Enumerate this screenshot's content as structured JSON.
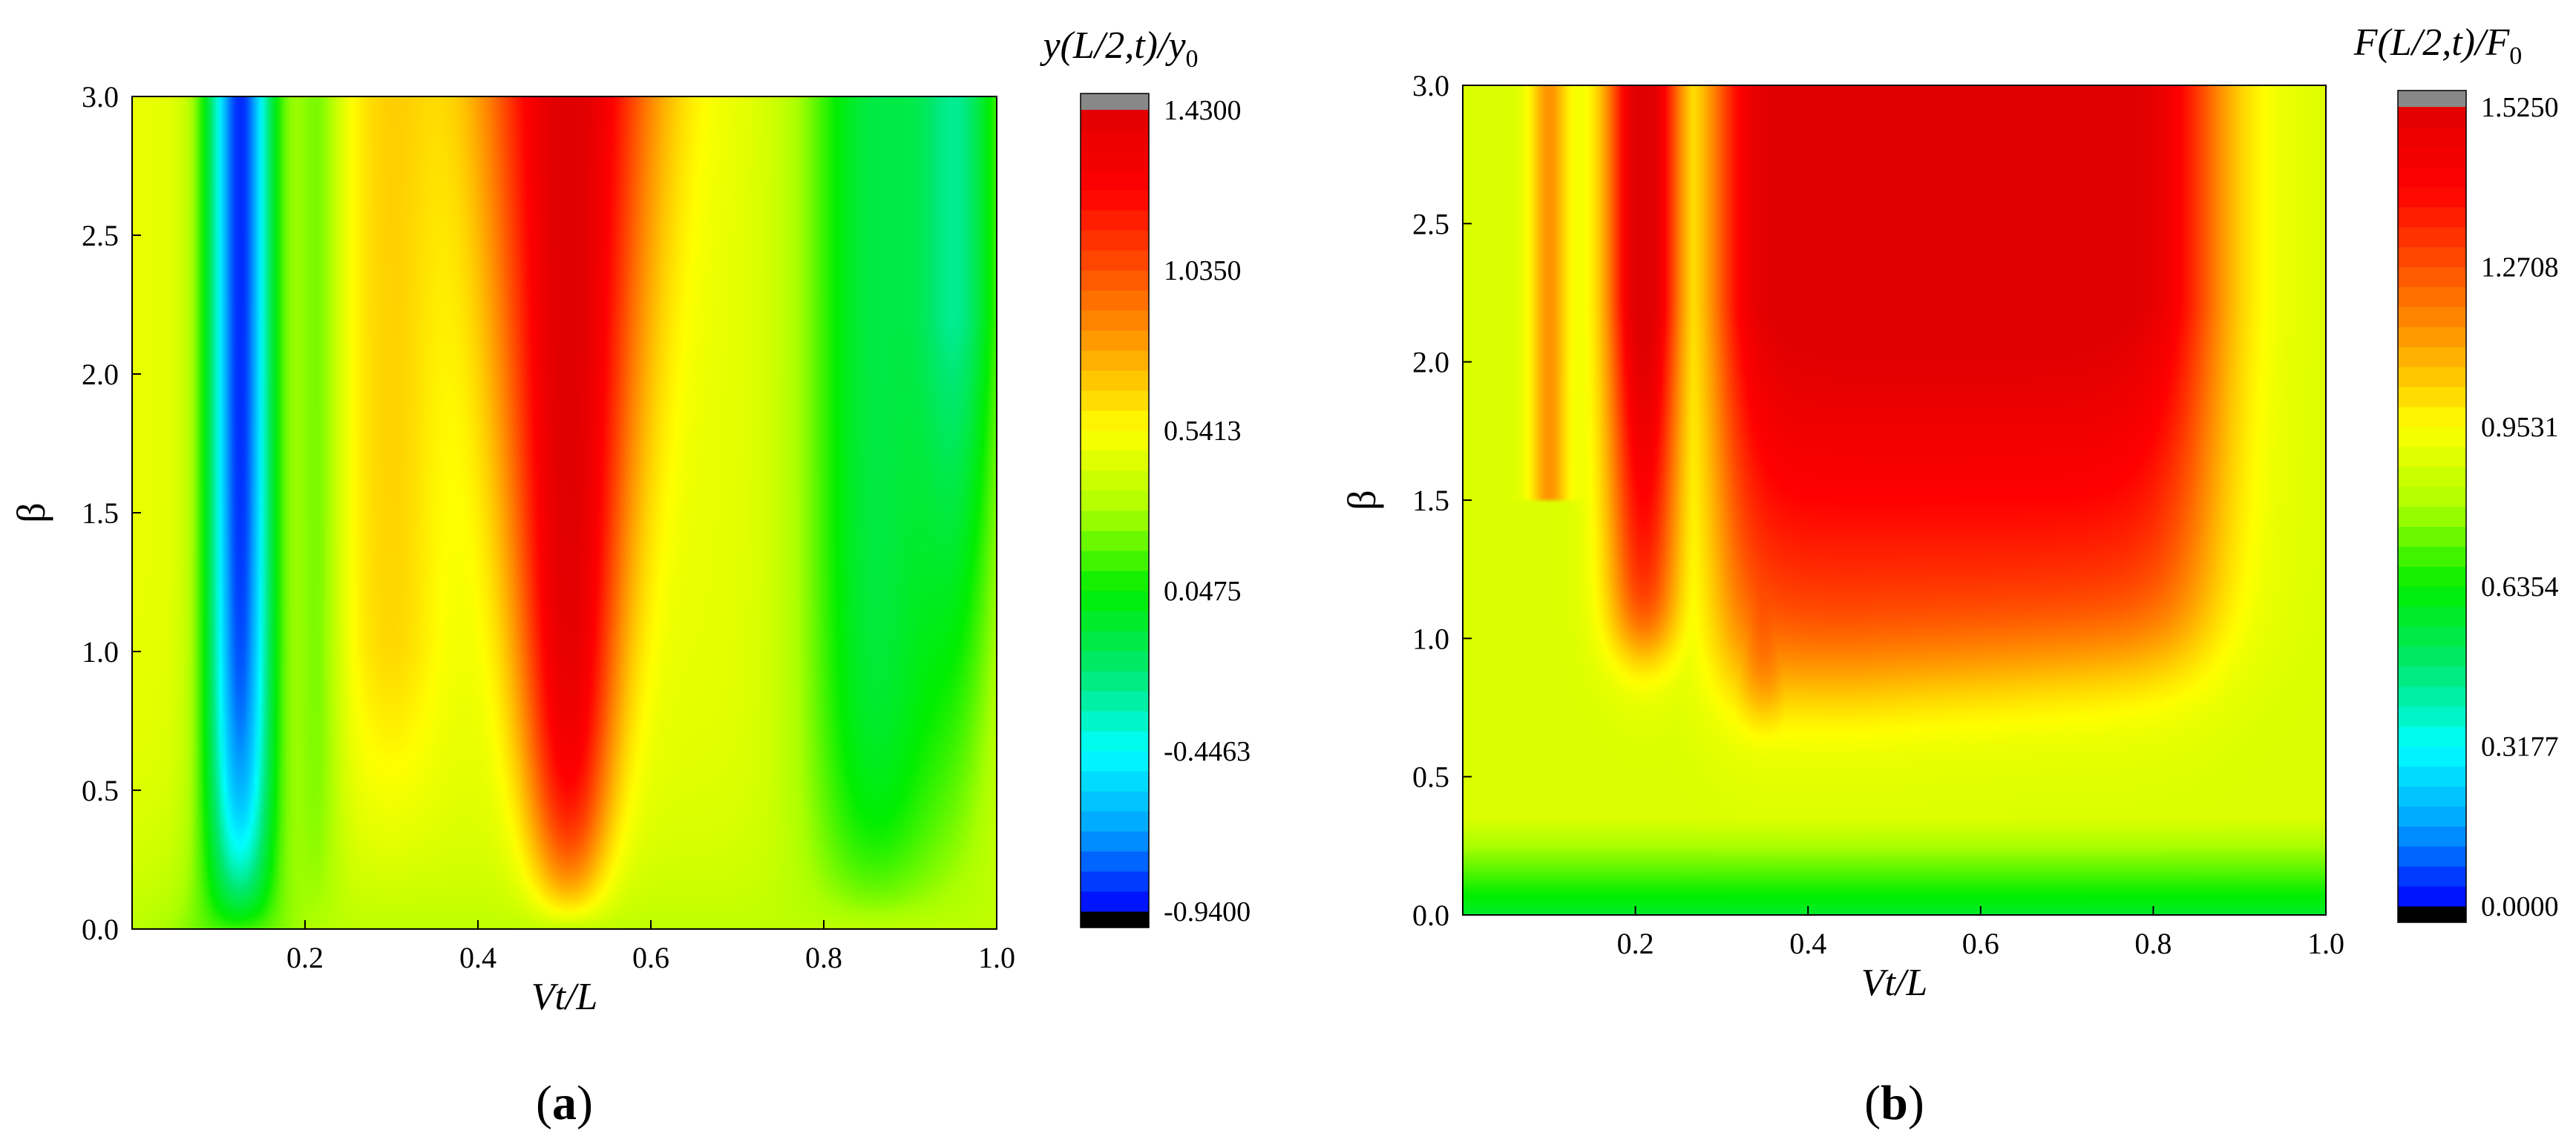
{
  "chart_data": [
    {
      "type": "heatmap",
      "panel_label": "(a)",
      "panel_letter": "a",
      "colorbar_title": "y(L/2,t)/y0",
      "xlabel": "Vt/L",
      "ylabel": "β",
      "xlim": [
        0,
        1.0
      ],
      "ylim": [
        0,
        3.0
      ],
      "x_ticks": [
        "0.2",
        "0.4",
        "0.6",
        "0.8",
        "1.0"
      ],
      "y_ticks": [
        "0.0",
        "0.5",
        "1.0",
        "1.5",
        "2.0",
        "2.5",
        "3.0"
      ],
      "colorbar_ticks": [
        "1.4300",
        "1.0350",
        "0.5413",
        "0.0475",
        "-0.4463",
        "-0.9400"
      ],
      "colorbar_range": [
        -0.94,
        1.43
      ],
      "description_of_field": "Vertical bands: deep minimum near Vt/L≈0.12 (≈-0.9), broad maximum centered at Vt/L≈0.5 rising with β to ≈1.43, secondary minimum near Vt/L≈0.95 (≈-0.6) at high β; values ≈0.3 at low β."
    },
    {
      "type": "heatmap",
      "panel_label": "(b)",
      "panel_letter": "b",
      "colorbar_title": "F(L/2,t)/F0",
      "xlabel": "Vt/L",
      "ylabel": "β",
      "xlim": [
        0,
        1.0
      ],
      "ylim": [
        0,
        3.0
      ],
      "x_ticks": [
        "0.2",
        "0.4",
        "0.6",
        "0.8",
        "1.0"
      ],
      "y_ticks": [
        "0.0",
        "0.5",
        "1.0",
        "1.5",
        "2.0",
        "2.5",
        "3.0"
      ],
      "colorbar_ticks": [
        "1.5250",
        "1.2708",
        "0.9531",
        "0.6354",
        "0.3177",
        "0.0000"
      ],
      "colorbar_range": [
        0.0,
        1.525
      ],
      "description_of_field": "High values (≈1.5) in a wide region 0.2<Vt/L<0.85 for β>1, with fingers reaching down near Vt/L≈0.2 (β≈0.85) and 0.35 (β≈0.7); ≈0.8 elsewhere; ≈0.55 near β=0."
    }
  ],
  "colors": {
    "colormap": [
      "#000000",
      "#0000ff",
      "#00a0ff",
      "#00ffff",
      "#00e870",
      "#00ee00",
      "#aaff00",
      "#ffff00",
      "#ffa500",
      "#ff5000",
      "#ff0000",
      "#e00000",
      "#888888"
    ],
    "colorbar_top_cap": "#888888",
    "colorbar_bottom_cap": "#000000"
  }
}
